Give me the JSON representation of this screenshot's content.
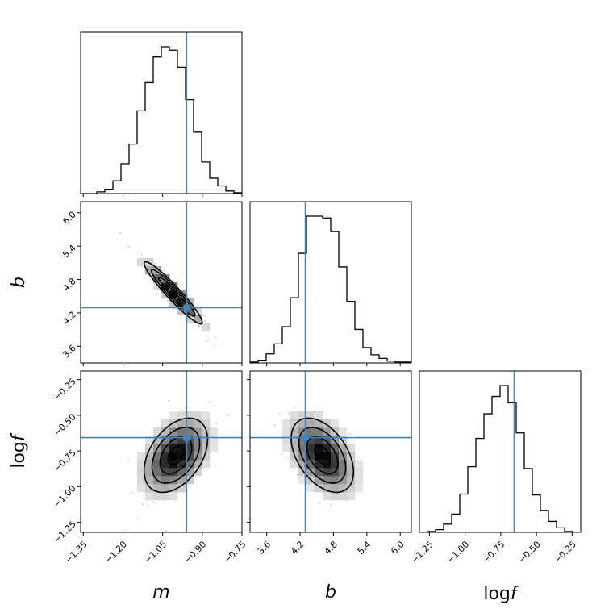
{
  "chart_data": {
    "type": "corner",
    "parameters": [
      "m",
      "b",
      "log f"
    ],
    "axis_labels": {
      "m": "m",
      "b": "b",
      "logf_prefix": "log",
      "logf_var": "f"
    },
    "truths": {
      "m": -0.9594,
      "b": 4.294,
      "logf": -0.6563
    },
    "truth_color": "#4682b4",
    "ranges": {
      "m": [
        -1.36,
        -0.75
      ],
      "b": [
        3.3,
        6.2
      ],
      "logf": [
        -1.32,
        -0.19
      ]
    },
    "ticks": {
      "m": [
        -1.35,
        -1.2,
        -1.05,
        -0.9,
        -0.75
      ],
      "b": [
        3.6,
        4.2,
        4.8,
        5.4,
        6.0
      ],
      "logf": [
        -1.25,
        -1.0,
        -0.75,
        -0.5,
        -0.25
      ]
    },
    "tick_labels": {
      "m": [
        "−1.35",
        "−1.20",
        "−1.05",
        "−0.90",
        "−0.75"
      ],
      "b": [
        "3.6",
        "4.2",
        "4.8",
        "5.4",
        "6.0"
      ],
      "logf": [
        "−1.25",
        "−1.00",
        "−0.75",
        "−0.50",
        "−0.25"
      ]
    },
    "histograms": {
      "m": {
        "bin_edges": [
          -1.36,
          -1.3295,
          -1.299,
          -1.2685,
          -1.238,
          -1.2075,
          -1.177,
          -1.1465,
          -1.116,
          -1.0855,
          -1.055,
          -1.0245,
          -0.994,
          -0.9635,
          -0.933,
          -0.9025,
          -0.872,
          -0.8415,
          -0.811,
          -0.7805,
          -0.75
        ],
        "counts": [
          0,
          0,
          2,
          5,
          15,
          35,
          58,
          97,
          130,
          160,
          172,
          168,
          148,
          110,
          72,
          37,
          18,
          9,
          3,
          1
        ]
      },
      "b": {
        "bin_edges": [
          3.3,
          3.445,
          3.59,
          3.735,
          3.88,
          4.025,
          4.17,
          4.315,
          4.46,
          4.605,
          4.75,
          4.895,
          5.04,
          5.185,
          5.33,
          5.475,
          5.62,
          5.765,
          5.91,
          6.055,
          6.2
        ],
        "counts": [
          1,
          3,
          10,
          21,
          40,
          72,
          121,
          162,
          162,
          160,
          145,
          106,
          68,
          37,
          17,
          9,
          5,
          2,
          1,
          1
        ]
      },
      "logf": {
        "bin_edges": [
          -1.32,
          -1.2635,
          -1.207,
          -1.1505,
          -1.094,
          -1.0375,
          -0.981,
          -0.9245,
          -0.868,
          -0.8115,
          -0.755,
          -0.6985,
          -0.642,
          -0.5855,
          -0.529,
          -0.4725,
          -0.416,
          -0.3595,
          -0.303,
          -0.2465,
          -0.19
        ],
        "counts": [
          0,
          1,
          3,
          9,
          20,
          42,
          72,
          103,
          130,
          149,
          161,
          142,
          109,
          70,
          41,
          24,
          12,
          5,
          1,
          0
        ]
      }
    },
    "joint_densities": [
      {
        "x": "m",
        "y": "b",
        "mean_x": -1.01,
        "mean_y": 4.56,
        "sd_x": 0.055,
        "sd_y": 0.28,
        "corr": -0.95
      },
      {
        "x": "m",
        "y": "logf",
        "mean_x": -1.0,
        "mean_y": -0.78,
        "sd_x": 0.06,
        "sd_y": 0.13,
        "corr": 0.42
      },
      {
        "x": "b",
        "y": "logf",
        "mean_x": 4.6,
        "mean_y": -0.78,
        "sd_x": 0.28,
        "sd_y": 0.13,
        "corr": -0.45
      }
    ],
    "contour_sigma_levels": [
      0.5,
      1.0,
      1.5,
      2.0
    ]
  }
}
